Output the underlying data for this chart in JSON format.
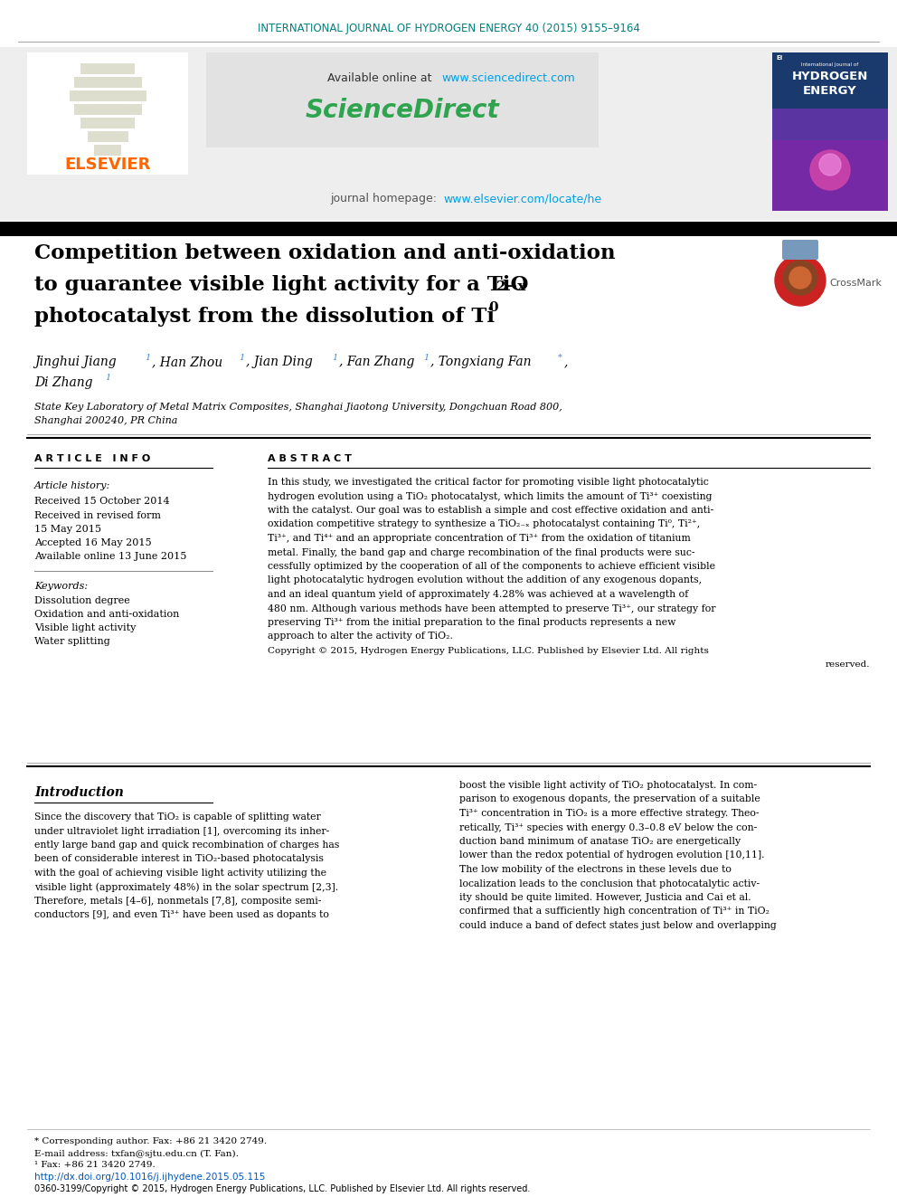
{
  "journal_header": "INTERNATIONAL JOURNAL OF HYDROGEN ENERGY 40 (2015) 9155–9164",
  "journal_header_color": "#008080",
  "sciencedirect_url_color": "#00a0e4",
  "sciencedirect_logo_text": "ScienceDirect",
  "journal_homepage_url": "www.elsevier.com/locate/he",
  "journal_homepage_url_color": "#00a0e4",
  "elsevier_text": "ELSEVIER",
  "elsevier_color": "#ff6600",
  "title_line1": "Competition between oxidation and anti-oxidation",
  "title_line2_main": "to guarantee visible light activity for a TiO",
  "title_line2_sub": "2−x",
  "title_line3_main": "photocatalyst from the dissolution of Ti",
  "title_line3_sup": "0",
  "affiliation": "State Key Laboratory of Metal Matrix Composites, Shanghai Jiaotong University, Dongchuan Road 800,",
  "affiliation2": "Shanghai 200240, PR China",
  "article_info_header": "A R T I C L E   I N F O",
  "abstract_header": "A B S T R A C T",
  "article_history_label": "Article history:",
  "received_1": "Received 15 October 2014",
  "received_2": "Received in revised form",
  "received_2b": "15 May 2015",
  "accepted": "Accepted 16 May 2015",
  "available": "Available online 13 June 2015",
  "keywords_label": "Keywords:",
  "keyword1": "Dissolution degree",
  "keyword2": "Oxidation and anti-oxidation",
  "keyword3": "Visible light activity",
  "keyword4": "Water splitting",
  "abstract_lines": [
    "In this study, we investigated the critical factor for promoting visible light photocatalytic",
    "hydrogen evolution using a TiO₂ photocatalyst, which limits the amount of Ti³⁺ coexisting",
    "with the catalyst. Our goal was to establish a simple and cost effective oxidation and anti-",
    "oxidation competitive strategy to synthesize a TiO₂₋ₓ photocatalyst containing Ti⁰, Ti²⁺,",
    "Ti³⁺, and Ti⁴⁺ and an appropriate concentration of Ti³⁺ from the oxidation of titanium",
    "metal. Finally, the band gap and charge recombination of the final products were suc-",
    "cessfully optimized by the cooperation of all of the components to achieve efficient visible",
    "light photocatalytic hydrogen evolution without the addition of any exogenous dopants,",
    "and an ideal quantum yield of approximately 4.28% was achieved at a wavelength of",
    "480 nm. Although various methods have been attempted to preserve Ti³⁺, our strategy for",
    "preserving Ti³⁺ from the initial preparation to the final products represents a new",
    "approach to alter the activity of TiO₂."
  ],
  "copyright_line1": "Copyright © 2015, Hydrogen Energy Publications, LLC. Published by Elsevier Ltd. All rights",
  "copyright_line2": "reserved.",
  "intro_header": "Introduction",
  "intro_left_lines": [
    "Since the discovery that TiO₂ is capable of splitting water",
    "under ultraviolet light irradiation [1], overcoming its inher-",
    "ently large band gap and quick recombination of charges has",
    "been of considerable interest in TiO₂-based photocatalysis",
    "with the goal of achieving visible light activity utilizing the",
    "visible light (approximately 48%) in the solar spectrum [2,3].",
    "Therefore, metals [4–6], nonmetals [7,8], composite semi-",
    "conductors [9], and even Ti³⁺ have been used as dopants to"
  ],
  "intro_right_lines": [
    "boost the visible light activity of TiO₂ photocatalyst. In com-",
    "parison to exogenous dopants, the preservation of a suitable",
    "Ti³⁺ concentration in TiO₂ is a more effective strategy. Theo-",
    "retically, Ti³⁺ species with energy 0.3–0.8 eV below the con-",
    "duction band minimum of anatase TiO₂ are energetically",
    "lower than the redox potential of hydrogen evolution [10,11].",
    "The low mobility of the electrons in these levels due to",
    "localization leads to the conclusion that photocatalytic activ-",
    "ity should be quite limited. However, Justicia and Cai et al.",
    "confirmed that a sufficiently high concentration of Ti³⁺ in TiO₂",
    "could induce a band of defect states just below and overlapping"
  ],
  "footnote1": "* Corresponding author. Fax: +86 21 3420 2749.",
  "footnote2": "E-mail address: txfan@sjtu.edu.cn (T. Fan).",
  "footnote3": "¹ Fax: +86 21 3420 2749.",
  "doi_text": "http://dx.doi.org/10.1016/j.ijhydene.2015.05.115",
  "issn_text": "0360-3199/Copyright © 2015, Hydrogen Energy Publications, LLC. Published by Elsevier Ltd. All rights reserved."
}
